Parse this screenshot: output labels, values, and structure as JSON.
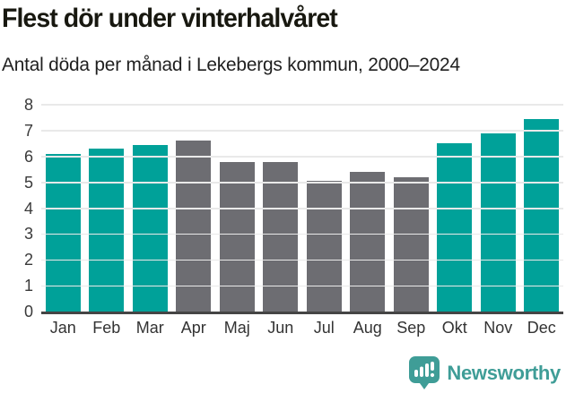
{
  "header": {
    "title": "Flest dör under vinterhalvåret",
    "subtitle": "Antal döda per månad i Lekebergs kommun, 2000–2024"
  },
  "chart_data": {
    "type": "bar",
    "title": "Flest dör under vinterhalvåret",
    "subtitle": "Antal döda per månad i Lekebergs kommun, 2000–2024",
    "categories": [
      "Jan",
      "Feb",
      "Mar",
      "Apr",
      "Maj",
      "Jun",
      "Jul",
      "Aug",
      "Sep",
      "Okt",
      "Nov",
      "Dec"
    ],
    "values": [
      6.1,
      6.3,
      6.45,
      6.6,
      5.8,
      5.8,
      5.05,
      5.4,
      5.2,
      6.5,
      6.9,
      7.45
    ],
    "bar_colors": [
      "#00a199",
      "#00a199",
      "#00a199",
      "#6d6d72",
      "#6d6d72",
      "#6d6d72",
      "#6d6d72",
      "#6d6d72",
      "#6d6d72",
      "#00a199",
      "#00a199",
      "#00a199"
    ],
    "highlight_color": "#00a199",
    "default_color": "#6d6d72",
    "xlabel": "",
    "ylabel": "",
    "ylim": [
      0,
      8
    ],
    "yticks": [
      0,
      1,
      2,
      3,
      4,
      5,
      6,
      7,
      8
    ],
    "grid": true,
    "legend": "none",
    "gridline_color": "#e9e9e9",
    "axis_color": "#454545"
  },
  "footer": {
    "brand": "Newsworthy",
    "brand_color": "#3f9d97",
    "logo_icon": "newsworthy-speech-bubble-bar-chart-icon"
  }
}
